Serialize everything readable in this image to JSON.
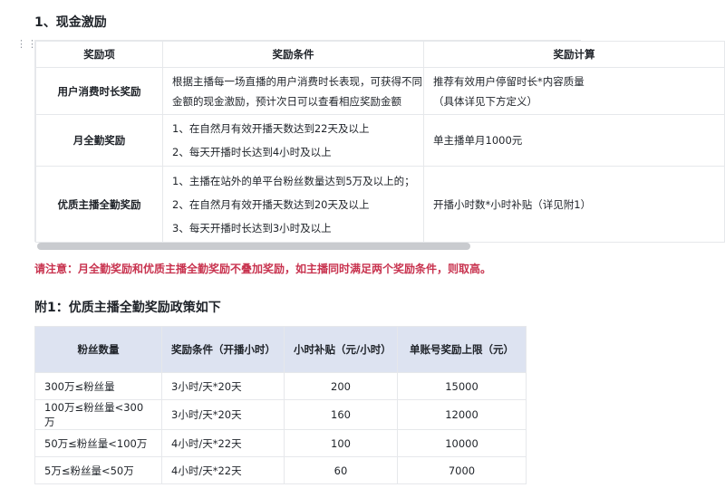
{
  "section1": {
    "title": "1、现金激励",
    "headers": [
      "奖励项",
      "奖励条件",
      "奖励计算"
    ],
    "rows": [
      {
        "item": "用户消费时长奖励",
        "conditions": [
          "根据主播每一场直播的用户消费时长表现，可获得不同",
          "金额的现金激励，预计次日可以查看相应奖励金额"
        ],
        "calc": [
          "推荐有效用户停留时长*内容质量",
          "（具体详见下方定义）"
        ]
      },
      {
        "item": "月全勤奖励",
        "conditions": [
          "1、在自然月有效开播天数达到22天及以上",
          "2、每天开播时长达到4小时及以上"
        ],
        "calc": [
          "单主播单月1000元"
        ]
      },
      {
        "item": "优质主播全勤奖励",
        "conditions": [
          "1、主播在站外的单平台粉丝数量达到5万及以上的；",
          "2、在自然月有效开播天数达到20天及以上",
          "3、每天开播时长达到3小时及以上"
        ],
        "calc": [
          "开播小时数*小时补贴（详见附1）"
        ]
      }
    ]
  },
  "note": "请注意：月全勤奖励和优质主播全勤奖励不叠加奖励，如主播同时满足两个奖励条件，则取高。",
  "section2": {
    "title": "附1：优质主播全勤奖励政策如下",
    "headers": [
      "粉丝数量",
      "奖励条件（开播小时）",
      "小时补贴（元/小时）",
      "单账号奖励上限（元）"
    ],
    "rows": [
      [
        "300万≤粉丝量",
        "3小时/天*20天",
        "200",
        "15000"
      ],
      [
        "100万≤粉丝量<300万",
        "3小时/天*20天",
        "160",
        "12000"
      ],
      [
        "50万≤粉丝量<100万",
        "4小时/天*22天",
        "100",
        "10000"
      ],
      [
        "5万≤粉丝量<50万",
        "4小时/天*22天",
        "60",
        "7000"
      ]
    ]
  },
  "colors": {
    "note": "#c8334f",
    "table2_header_bg": "#dde3f1"
  }
}
